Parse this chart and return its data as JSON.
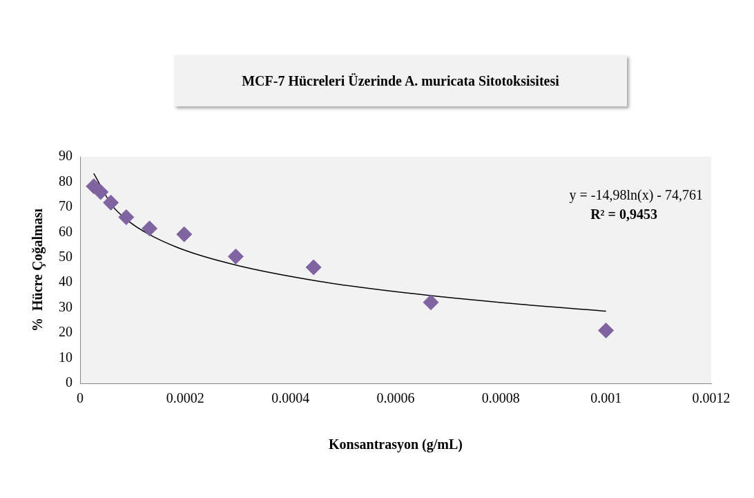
{
  "chart_data": {
    "type": "scatter",
    "title": "MCF-7 Hücreleri Üzerinde A. muricata Sitotoksisitesi",
    "xlabel": "Konsantrasyon (g/mL)",
    "ylabel": "%  Hücre Çoğalması",
    "series": [
      {
        "color": "#8064a2",
        "marker": "diamond",
        "x": [
          2.6e-05,
          3.9e-05,
          5.85e-05,
          8.78e-05,
          0.000132,
          0.000198,
          0.000296,
          0.000444,
          0.000667,
          0.001
        ],
        "values": [
          78.3,
          76,
          71.8,
          66,
          61.5,
          59.2,
          50.4,
          46.1,
          32.2,
          21
        ]
      },
      {
        "type": "line",
        "color": "#000000",
        "marker": "none",
        "x": [
          2.6e-05,
          6e-05,
          9e-05,
          0.00013,
          0.0002,
          0.0003,
          0.00045,
          0.0006,
          0.0008,
          0.001
        ],
        "values": [
          83.4,
          70.9,
          64.8,
          59.3,
          52.8,
          46.8,
          40.7,
          36.4,
          32.1,
          28.7
        ]
      }
    ],
    "xlim": [
      0,
      0.0012
    ],
    "xticks": [
      0,
      0.0002,
      0.0004,
      0.0006,
      0.0008,
      0.001,
      0.0012
    ],
    "ylim": [
      0,
      90
    ],
    "yticks": [
      0,
      10,
      20,
      30,
      40,
      50,
      60,
      70,
      80,
      90
    ],
    "grid": false,
    "legend": false,
    "annotations": [
      "y = -14,98ln(x) - 74,761",
      "R² = 0,9453"
    ]
  }
}
